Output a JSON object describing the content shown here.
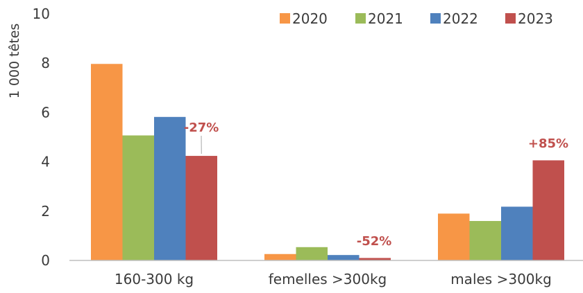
{
  "chart_data": {
    "type": "bar",
    "categories": [
      "160-300 kg",
      "femelles >300kg",
      "males >300kg"
    ],
    "series": [
      {
        "name": "2020",
        "color": "#f79646",
        "values": [
          7.97,
          0.26,
          1.9
        ]
      },
      {
        "name": "2021",
        "color": "#9bbb59",
        "values": [
          5.07,
          0.54,
          1.6
        ]
      },
      {
        "name": "2022",
        "color": "#4f81bd",
        "values": [
          5.82,
          0.22,
          2.18
        ]
      },
      {
        "name": "2023",
        "color": "#c0504d",
        "values": [
          4.24,
          0.1,
          4.06
        ]
      }
    ],
    "ylabel": "1 000 têtes",
    "ylim": [
      0,
      10
    ],
    "yticks": [
      "0",
      "2",
      "4",
      "6",
      "8",
      "10"
    ],
    "grid": false,
    "legend_position": "top-right",
    "annotations": [
      {
        "text": "-27%",
        "category": 0,
        "series": 3,
        "color": "#c0504d"
      },
      {
        "text": "-52%",
        "category": 1,
        "series": 3,
        "color": "#c0504d"
      },
      {
        "text": "+85%",
        "category": 2,
        "series": 3,
        "color": "#c0504d"
      }
    ],
    "axis_color": "#bfbfbf"
  }
}
